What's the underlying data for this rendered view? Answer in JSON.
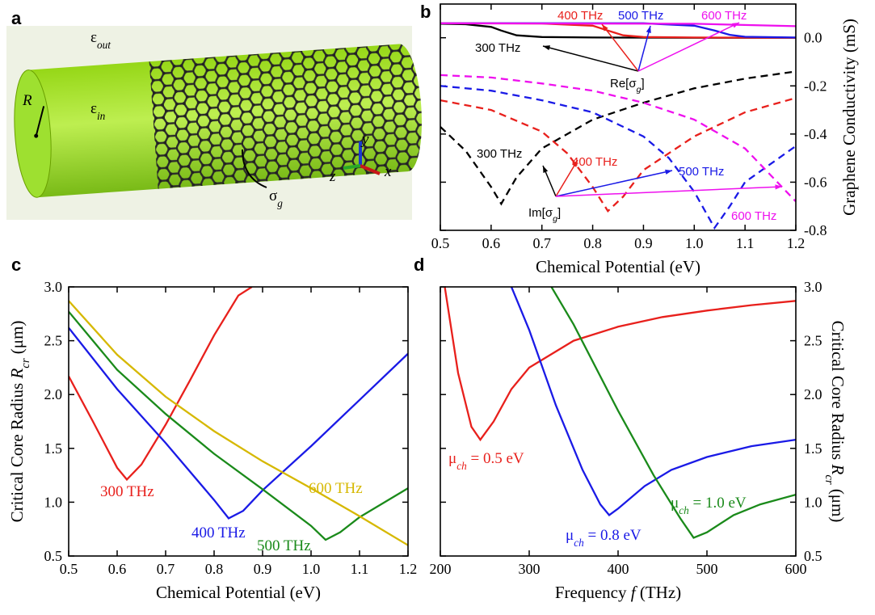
{
  "illustration": {
    "label": "a",
    "eps_out": [
      "ε",
      "out"
    ],
    "eps_in": [
      "ε",
      "in"
    ],
    "radius": "R",
    "sigma": [
      "σ",
      "g"
    ],
    "axes": [
      "x",
      "y",
      "z"
    ]
  },
  "chart_data": [
    {
      "type": "line",
      "panel": "b",
      "xlabel": "Chemical Potential (eV)",
      "ylabel": [
        "Graphene Conductivity (mS)"
      ],
      "xlim": [
        0.5,
        1.2
      ],
      "xticks": [
        0.5,
        0.6,
        0.7,
        0.8,
        0.9,
        {
          "value": 1,
          "label": "1.0"
        },
        1.1,
        1.2
      ],
      "ylim": [
        -0.8,
        0.14
      ],
      "yticks": [
        {
          "value": 0,
          "label": "0.0"
        },
        -0.2,
        -0.4,
        -0.6,
        -0.8
      ],
      "re_label": [
        "Re[σ",
        "g",
        "]"
      ],
      "im_label": [
        "Im[σ",
        "g",
        "]"
      ],
      "series": [
        {
          "name": "300 THz",
          "color": "#000000",
          "style": "solid",
          "x": [
            0.5,
            0.55,
            0.6,
            0.62,
            0.65,
            0.7,
            0.8,
            1.0,
            1.2
          ],
          "values": [
            0.058,
            0.056,
            0.045,
            0.03,
            0.01,
            0.003,
            0.001,
            0,
            0
          ]
        },
        {
          "name": "400 THz",
          "color": "#e8201c",
          "style": "solid",
          "x": [
            0.5,
            0.7,
            0.8,
            0.83,
            0.86,
            0.9,
            1.0,
            1.2
          ],
          "values": [
            0.06,
            0.059,
            0.05,
            0.03,
            0.01,
            0.003,
            0.001,
            0
          ]
        },
        {
          "name": "500 THz",
          "color": "#1a1ae6",
          "style": "solid",
          "x": [
            0.5,
            0.9,
            1.0,
            1.04,
            1.07,
            1.1,
            1.2
          ],
          "values": [
            0.06,
            0.06,
            0.05,
            0.03,
            0.012,
            0.004,
            0.001
          ]
        },
        {
          "name": "600 THz",
          "color": "#ee10ee",
          "style": "solid",
          "x": [
            0.5,
            1.0,
            1.2
          ],
          "values": [
            0.06,
            0.058,
            0.048
          ]
        },
        {
          "name": "300 THz",
          "color": "#000000",
          "style": "dashed",
          "x": [
            0.5,
            0.55,
            0.6,
            0.62,
            0.65,
            0.7,
            0.8,
            0.9,
            1.0,
            1.1,
            1.2
          ],
          "values": [
            -0.37,
            -0.47,
            -0.62,
            -0.69,
            -0.58,
            -0.46,
            -0.34,
            -0.27,
            -0.21,
            -0.17,
            -0.14
          ]
        },
        {
          "name": "400 THz",
          "color": "#e8201c",
          "style": "dashed",
          "x": [
            0.5,
            0.6,
            0.7,
            0.75,
            0.8,
            0.83,
            0.86,
            0.9,
            1.0,
            1.1,
            1.2
          ],
          "values": [
            -0.26,
            -0.3,
            -0.39,
            -0.48,
            -0.62,
            -0.72,
            -0.66,
            -0.55,
            -0.41,
            -0.31,
            -0.25
          ]
        },
        {
          "name": "500 THz",
          "color": "#1a1ae6",
          "style": "dashed",
          "x": [
            0.5,
            0.6,
            0.7,
            0.8,
            0.9,
            0.95,
            1.0,
            1.04,
            1.07,
            1.1,
            1.2
          ],
          "values": [
            -0.2,
            -0.22,
            -0.26,
            -0.31,
            -0.41,
            -0.5,
            -0.64,
            -0.79,
            -0.7,
            -0.6,
            -0.45
          ]
        },
        {
          "name": "600 THz",
          "color": "#ee10ee",
          "style": "dashed",
          "x": [
            0.5,
            0.6,
            0.7,
            0.8,
            0.9,
            1.0,
            1.1,
            1.15,
            1.2
          ],
          "values": [
            -0.155,
            -0.165,
            -0.19,
            -0.22,
            -0.27,
            -0.34,
            -0.46,
            -0.57,
            -0.68
          ]
        }
      ]
    },
    {
      "type": "line",
      "panel": "c",
      "xlabel": "Chemical Potential (eV)",
      "ylabel": [
        "Critical Core Radius ",
        "R",
        "cr",
        " (μm)"
      ],
      "xlim": [
        0.5,
        1.2
      ],
      "xticks": [
        0.5,
        0.6,
        0.7,
        0.8,
        0.9,
        {
          "value": 1,
          "label": "1.0"
        },
        1.1,
        1.2
      ],
      "ylim": [
        0.5,
        3.0
      ],
      "yticks": [
        0.5,
        {
          "value": 1,
          "label": "1.0"
        },
        1.5,
        {
          "value": 2,
          "label": "2.0"
        },
        2.5,
        {
          "value": 3,
          "label": "3.0"
        }
      ],
      "series": [
        {
          "name": "300 THz",
          "color": "#e8201c",
          "style": "solid",
          "x": [
            0.5,
            0.55,
            0.6,
            0.62,
            0.65,
            0.7,
            0.75,
            0.8,
            0.85,
            0.878
          ],
          "values": [
            2.17,
            1.75,
            1.32,
            1.21,
            1.35,
            1.72,
            2.13,
            2.55,
            2.92,
            3.0
          ]
        },
        {
          "name": "400 THz",
          "color": "#1a1ae6",
          "style": "solid",
          "x": [
            0.5,
            0.6,
            0.7,
            0.8,
            0.83,
            0.86,
            0.9,
            1.0,
            1.1,
            1.2
          ],
          "values": [
            2.62,
            2.05,
            1.55,
            1.02,
            0.85,
            0.92,
            1.11,
            1.52,
            1.95,
            2.38
          ]
        },
        {
          "name": "500 THz",
          "color": "#1a8a1a",
          "style": "solid",
          "x": [
            0.5,
            0.6,
            0.7,
            0.8,
            0.9,
            1.0,
            1.03,
            1.06,
            1.1,
            1.2
          ],
          "values": [
            2.77,
            2.23,
            1.82,
            1.45,
            1.12,
            0.78,
            0.65,
            0.72,
            0.86,
            1.13
          ]
        },
        {
          "name": "600 THz",
          "color": "#d6b800",
          "style": "solid",
          "x": [
            0.5,
            0.6,
            0.7,
            0.8,
            0.9,
            1.0,
            1.1,
            1.2
          ],
          "values": [
            2.87,
            2.37,
            1.98,
            1.66,
            1.38,
            1.13,
            0.87,
            0.6
          ]
        }
      ]
    },
    {
      "type": "line",
      "panel": "d",
      "xlabel": [
        "Frequency ",
        "f",
        " (THz)"
      ],
      "ylabel": [
        "Critical Core Radius ",
        "R",
        "cr",
        " (μm)"
      ],
      "xlim": [
        200,
        600
      ],
      "xticks": [
        200,
        300,
        400,
        500,
        600
      ],
      "ylim": [
        0.5,
        3.0
      ],
      "yticks": [
        0.5,
        {
          "value": 1,
          "label": "1.0"
        },
        1.5,
        {
          "value": 2,
          "label": "2.0"
        },
        2.5,
        {
          "value": 3,
          "label": "3.0"
        }
      ],
      "series": [
        {
          "label": [
            "μ",
            "ch",
            " = 0.5 eV"
          ],
          "color": "#e8201c",
          "style": "solid",
          "x": [
            205,
            220,
            235,
            245,
            260,
            280,
            300,
            350,
            400,
            450,
            500,
            550,
            600
          ],
          "values": [
            3.0,
            2.2,
            1.7,
            1.58,
            1.75,
            2.05,
            2.25,
            2.5,
            2.63,
            2.72,
            2.78,
            2.83,
            2.87
          ]
        },
        {
          "label": [
            "μ",
            "ch",
            " = 0.8 eV"
          ],
          "color": "#1a1ae6",
          "style": "solid",
          "x": [
            280,
            300,
            330,
            360,
            380,
            390,
            400,
            430,
            460,
            500,
            550,
            600
          ],
          "values": [
            3.0,
            2.6,
            1.9,
            1.3,
            0.98,
            0.88,
            0.94,
            1.15,
            1.3,
            1.42,
            1.52,
            1.58
          ]
        },
        {
          "label": [
            "μ",
            "ch",
            " = 1.0 eV"
          ],
          "color": "#1a8a1a",
          "style": "solid",
          "x": [
            325,
            350,
            400,
            440,
            470,
            485,
            500,
            530,
            560,
            600
          ],
          "values": [
            3.0,
            2.65,
            1.85,
            1.25,
            0.85,
            0.67,
            0.72,
            0.88,
            0.98,
            1.07
          ]
        }
      ]
    }
  ]
}
